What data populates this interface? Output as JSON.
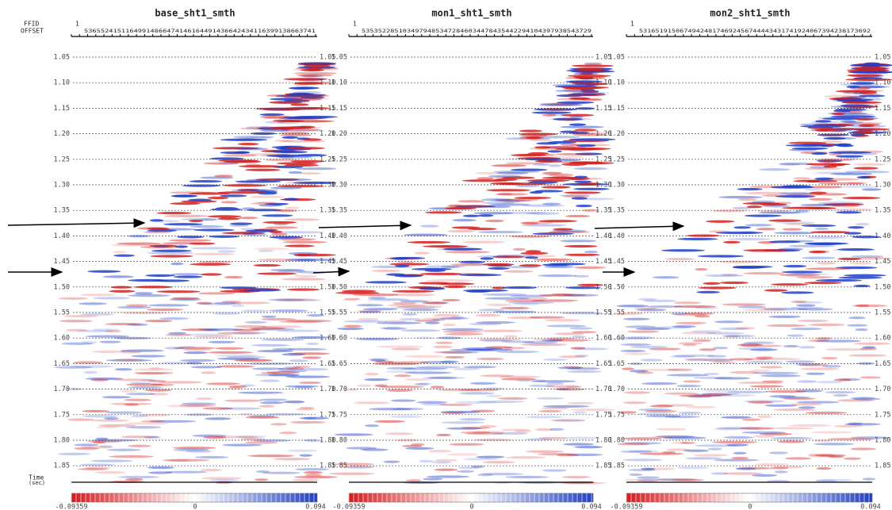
{
  "header": {
    "ffid_label": "FFID",
    "offset_label": "OFFSET",
    "time_label": "Time",
    "time_unit": "(sec)"
  },
  "panels": [
    {
      "title": "base_sht1_smth",
      "ffid": "1",
      "offsets": "53655241511649914866474146164491436642434116399138663741",
      "colorbar": {
        "min": "-0.09359",
        "mid": "0",
        "max": "0.094"
      }
    },
    {
      "title": "mon1_sht1_smth",
      "ffid": "1",
      "offsets": "53535228510349794853472846034478435442294104397938543729",
      "colorbar": {
        "min": "-0.09359",
        "mid": "0",
        "max": "0.094"
      }
    },
    {
      "title": "mon2_sht1_smth",
      "ffid": "1",
      "offsets": "531651915067494248174692456744443431741924067394238173692",
      "colorbar": {
        "min": "-0.09359",
        "mid": "0",
        "max": "0.094"
      }
    }
  ],
  "time_ticks": [
    "1.05",
    "1.10",
    "1.15",
    "1.20",
    "1.25",
    "1.30",
    "1.35",
    "1.40",
    "1.45",
    "1.50",
    "1.55",
    "1.60",
    "1.65",
    "1.70",
    "1.75",
    "1.80",
    "1.85"
  ]
}
